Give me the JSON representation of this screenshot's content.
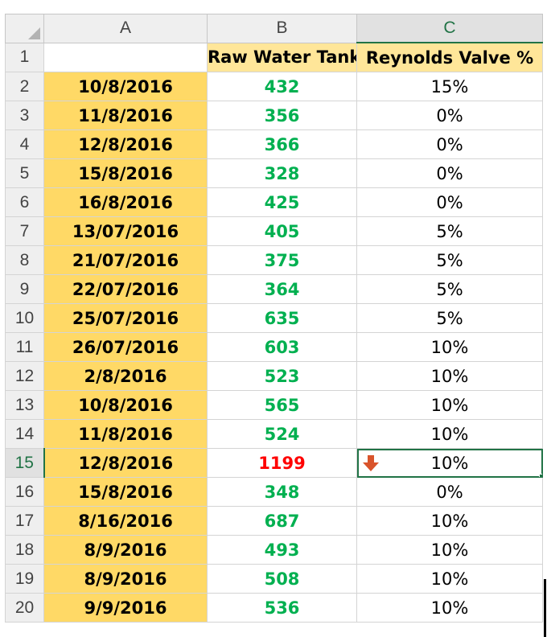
{
  "columns": [
    "A",
    "B",
    "C"
  ],
  "header": {
    "col_a": "",
    "col_b": "Raw Water Tank",
    "col_c": "Reynolds Valve %"
  },
  "rows": [
    {
      "num": "2",
      "date": "10/8/2016",
      "tank": "432",
      "valve": "15%"
    },
    {
      "num": "3",
      "date": "11/8/2016",
      "tank": "356",
      "valve": "0%"
    },
    {
      "num": "4",
      "date": "12/8/2016",
      "tank": "366",
      "valve": "0%"
    },
    {
      "num": "5",
      "date": "15/8/2016",
      "tank": "328",
      "valve": "0%"
    },
    {
      "num": "6",
      "date": "16/8/2016",
      "tank": "425",
      "valve": "0%"
    },
    {
      "num": "7",
      "date": "13/07/2016",
      "tank": "405",
      "valve": "5%"
    },
    {
      "num": "8",
      "date": "21/07/2016",
      "tank": "375",
      "valve": "5%"
    },
    {
      "num": "9",
      "date": "22/07/2016",
      "tank": "364",
      "valve": "5%"
    },
    {
      "num": "10",
      "date": "25/07/2016",
      "tank": "635",
      "valve": "5%"
    },
    {
      "num": "11",
      "date": "26/07/2016",
      "tank": "603",
      "valve": "10%"
    },
    {
      "num": "12",
      "date": "2/8/2016",
      "tank": "523",
      "valve": "10%"
    },
    {
      "num": "13",
      "date": "10/8/2016",
      "tank": "565",
      "valve": "10%"
    },
    {
      "num": "14",
      "date": "11/8/2016",
      "tank": "524",
      "valve": "10%"
    },
    {
      "num": "15",
      "date": "12/8/2016",
      "tank": "1199",
      "valve": "10%"
    },
    {
      "num": "16",
      "date": "15/8/2016",
      "tank": "348",
      "valve": "0%"
    },
    {
      "num": "17",
      "date": "8/16/2016",
      "tank": "687",
      "valve": "10%"
    },
    {
      "num": "18",
      "date": "8/9/2016",
      "tank": "493",
      "valve": "10%"
    },
    {
      "num": "19",
      "date": "8/9/2016",
      "tank": "508",
      "valve": "10%"
    },
    {
      "num": "20",
      "date": "9/9/2016",
      "tank": "536",
      "valve": "10%"
    }
  ],
  "header_row_num": "1",
  "selected_row": "15",
  "highlight_tank_value": "1199",
  "icons": {
    "select_all": "select-all-triangle-icon",
    "cell_c15": "down-arrow-icon"
  },
  "colors": {
    "date_fill": "#ffd966",
    "header_fill": "#ffe699",
    "tank_normal": "#00b050",
    "tank_high": "#ff0000",
    "selection": "#217346",
    "arrow": "#d9542b"
  }
}
